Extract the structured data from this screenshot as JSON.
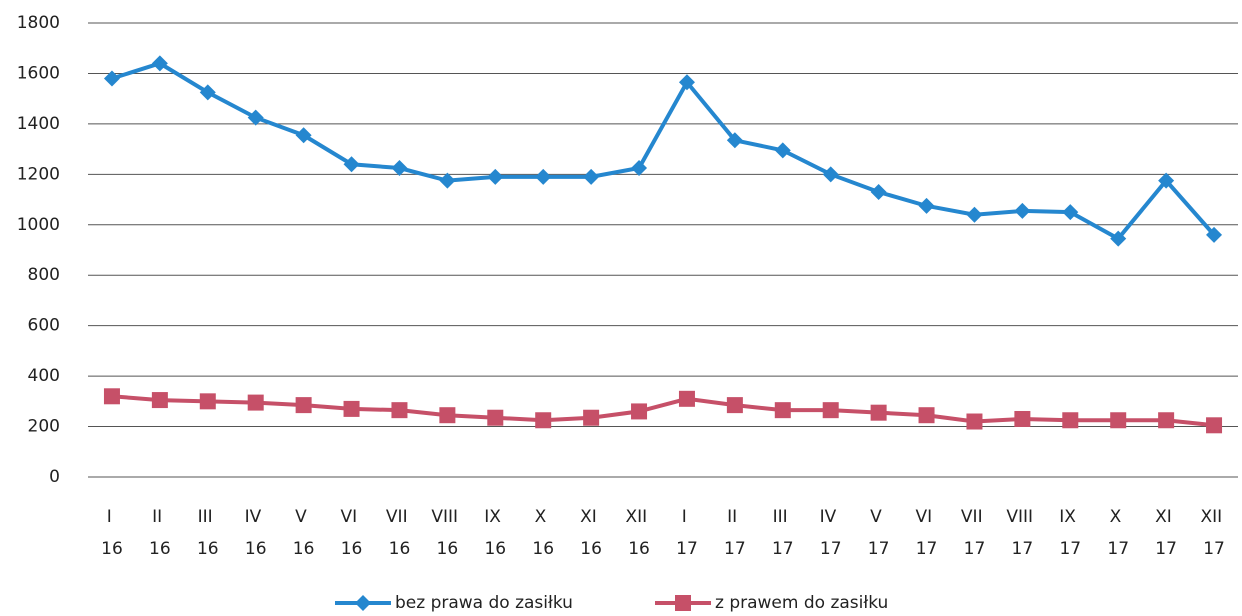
{
  "chart_data": {
    "type": "line",
    "categories": [
      "I 16",
      "II 16",
      "III 16",
      "IV 16",
      "V 16",
      "VI 16",
      "VII 16",
      "VIII 16",
      "IX 16",
      "X 16",
      "XI 16",
      "XII 16",
      "I 17",
      "II 17",
      "III 17",
      "IV 17",
      "V 17",
      "VI 17",
      "VII 17",
      "VIII 17",
      "IX 17",
      "X 17",
      "XI 17",
      "XII 17"
    ],
    "series": [
      {
        "name": "bez prawa do zasiłku",
        "color": "#2587cf",
        "marker": "diamond",
        "values": [
          1580,
          1640,
          1525,
          1425,
          1355,
          1240,
          1225,
          1175,
          1190,
          1190,
          1190,
          1225,
          1565,
          1335,
          1295,
          1200,
          1130,
          1075,
          1040,
          1055,
          1050,
          945,
          1175,
          960
        ]
      },
      {
        "name": "z prawem do zasiłku",
        "color": "#c65068",
        "marker": "square",
        "values": [
          320,
          305,
          300,
          295,
          285,
          270,
          265,
          245,
          235,
          225,
          235,
          260,
          310,
          285,
          265,
          265,
          255,
          245,
          220,
          230,
          225,
          225,
          225,
          205
        ]
      }
    ],
    "ylim": [
      0,
      1800
    ],
    "yticks": [
      0,
      200,
      400,
      600,
      800,
      1000,
      1200,
      1400,
      1600,
      1800
    ],
    "grid": true,
    "legend": "bottom"
  }
}
